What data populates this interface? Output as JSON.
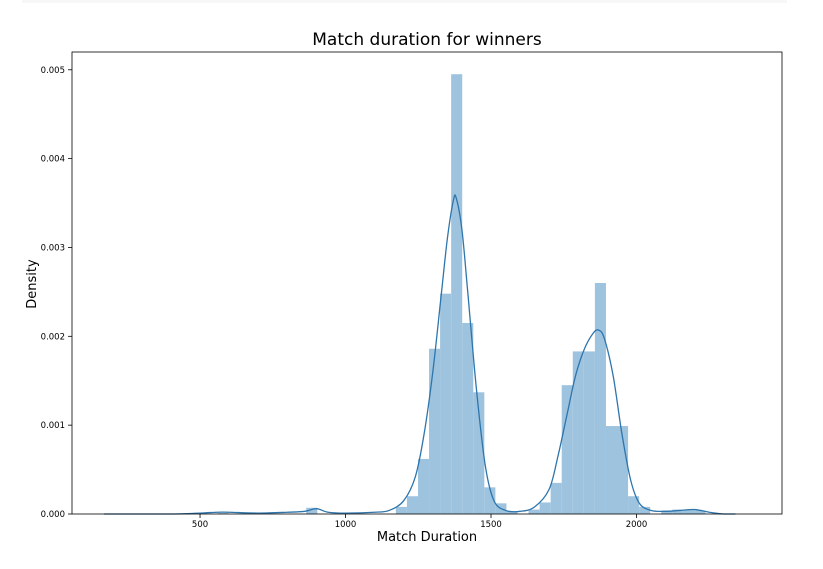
{
  "chart_data": {
    "type": "bar",
    "title": "Match duration for winners",
    "xlabel": "Match Duration",
    "ylabel": "Density",
    "xlim": [
      60,
      2500
    ],
    "ylim": [
      0,
      0.0052
    ],
    "x_ticks": [
      500,
      1000,
      1500,
      2000
    ],
    "x_tick_labels": [
      "500",
      "1000",
      "1500",
      "2000"
    ],
    "y_ticks": [
      0,
      0.001,
      0.002,
      0.003,
      0.004,
      0.005
    ],
    "y_tick_labels": [
      "0.000",
      "0.001",
      "0.002",
      "0.003",
      "0.004",
      "0.005"
    ],
    "grid": false,
    "bar_color": "#9ec3de",
    "line_color": "#2e75ac",
    "histogram": {
      "bin_width": 38,
      "bins": [
        {
          "x0": 1173,
          "value": 8e-05
        },
        {
          "x0": 1211,
          "value": 0.0002
        },
        {
          "x0": 1249,
          "value": 0.00062
        },
        {
          "x0": 1287,
          "value": 0.00186
        },
        {
          "x0": 1325,
          "value": 0.00248
        },
        {
          "x0": 1363,
          "value": 0.00495
        },
        {
          "x0": 1401,
          "value": 0.00215
        },
        {
          "x0": 1439,
          "value": 0.00137
        },
        {
          "x0": 1477,
          "value": 0.0003
        },
        {
          "x0": 1515,
          "value": 0.00012
        },
        {
          "x0": 1553,
          "value": 3e-05
        },
        {
          "x0": 1629,
          "value": 5e-05
        },
        {
          "x0": 1667,
          "value": 0.00013
        },
        {
          "x0": 1705,
          "value": 0.00035
        },
        {
          "x0": 1743,
          "value": 0.00145
        },
        {
          "x0": 1781,
          "value": 0.00183
        },
        {
          "x0": 1819,
          "value": 0.00183
        },
        {
          "x0": 1857,
          "value": 0.0026
        },
        {
          "x0": 1895,
          "value": 0.00099
        },
        {
          "x0": 1933,
          "value": 0.00099
        },
        {
          "x0": 1971,
          "value": 0.0002
        },
        {
          "x0": 2009,
          "value": 8e-05
        },
        {
          "x0": 2085,
          "value": 4e-05
        },
        {
          "x0": 2123,
          "value": 5e-05
        },
        {
          "x0": 2161,
          "value": 5e-05
        },
        {
          "x0": 2199,
          "value": 4e-05
        },
        {
          "x0": 865,
          "value": 7e-05
        },
        {
          "x0": 560,
          "value": 1e-05
        }
      ]
    },
    "kde": {
      "x": [
        170,
        300,
        400,
        500,
        560,
        600,
        700,
        800,
        860,
        900,
        940,
        1000,
        1100,
        1150,
        1200,
        1240,
        1270,
        1300,
        1330,
        1350,
        1370,
        1380,
        1400,
        1420,
        1450,
        1480,
        1510,
        1550,
        1600,
        1650,
        1700,
        1730,
        1760,
        1790,
        1820,
        1850,
        1870,
        1890,
        1920,
        1950,
        1980,
        2010,
        2050,
        2100,
        2150,
        2200,
        2250,
        2300,
        2340
      ],
      "y": [
        0.0,
        0.0,
        0.0,
        1e-05,
        2e-05,
        2e-05,
        1e-05,
        2e-05,
        3e-05,
        6e-05,
        2e-05,
        1e-05,
        2e-05,
        4e-05,
        0.00015,
        0.00042,
        0.0009,
        0.0016,
        0.0025,
        0.0031,
        0.00352,
        0.00356,
        0.0032,
        0.0025,
        0.0014,
        0.00055,
        0.00015,
        4e-05,
        3e-05,
        8e-05,
        0.00028,
        0.00065,
        0.0011,
        0.00155,
        0.00185,
        0.00203,
        0.00207,
        0.00197,
        0.00155,
        0.0009,
        0.00038,
        0.00012,
        4e-05,
        3e-05,
        4e-05,
        5e-05,
        2e-05,
        0.0,
        0.0
      ]
    }
  }
}
